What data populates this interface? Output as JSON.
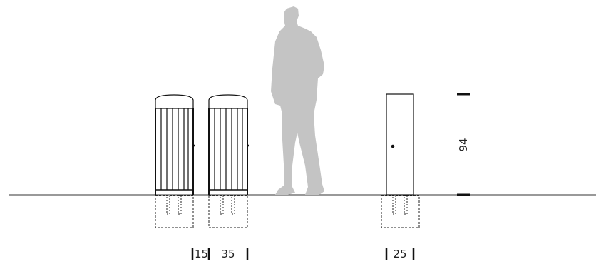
{
  "dimensions": {
    "height_label": "94",
    "gap_label": "15",
    "width_label_slatted": "35",
    "width_label_post": "25"
  },
  "colors": {
    "line": "#111111",
    "ground": "#333333",
    "silhouette": "#c4c4c4",
    "dashed": "#222222"
  },
  "icons": {
    "person": "person-silhouette-icon"
  }
}
